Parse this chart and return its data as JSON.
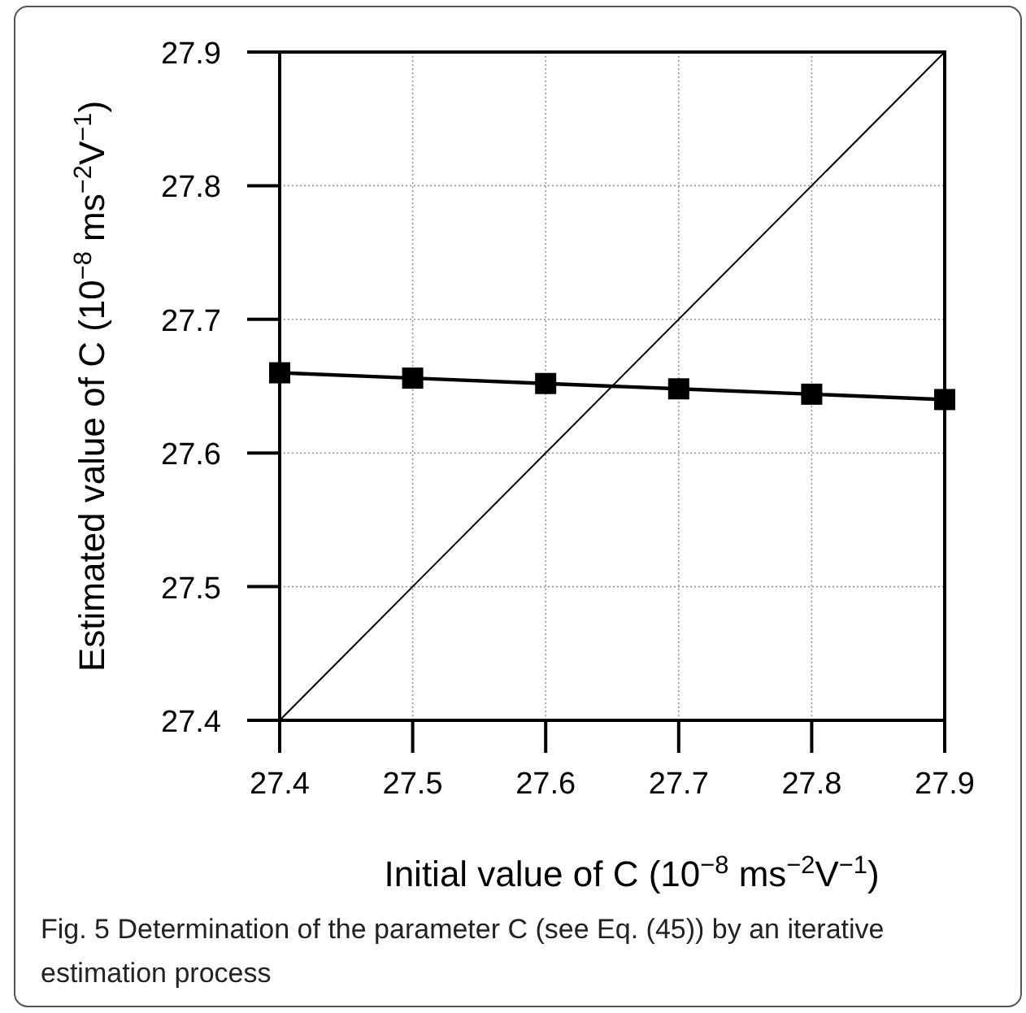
{
  "chart_data": {
    "type": "line",
    "xlabel": "Initial value of C (10$^{−8}$ ms$^{−2}$V$^{−1}$)",
    "ylabel": "Estimated value of C (10$^{−8}$ ms$^{−2}$V$^{−1}$)",
    "x": [
      27.4,
      27.5,
      27.6,
      27.7,
      27.8,
      27.9
    ],
    "series": [
      {
        "color": "#000000",
        "values": [
          27.66,
          27.656,
          27.652,
          27.648,
          27.644,
          27.64
        ],
        "marker": "square"
      },
      {
        "color": "#000000",
        "x": [
          27.4,
          27.9
        ],
        "values": [
          27.4,
          27.9
        ],
        "marker": "none"
      }
    ],
    "xlim": [
      27.4,
      27.9
    ],
    "ylim": [
      27.4,
      27.9
    ],
    "xticks": [
      27.4,
      27.5,
      27.6,
      27.7,
      27.8,
      27.9
    ],
    "yticks": [
      27.4,
      27.5,
      27.6,
      27.7,
      27.8,
      27.9
    ],
    "grid": true,
    "annotations": [
      "Fig. 5  Determination of the parameter C (see Eq. (45)) by an iterative estimation process"
    ]
  }
}
